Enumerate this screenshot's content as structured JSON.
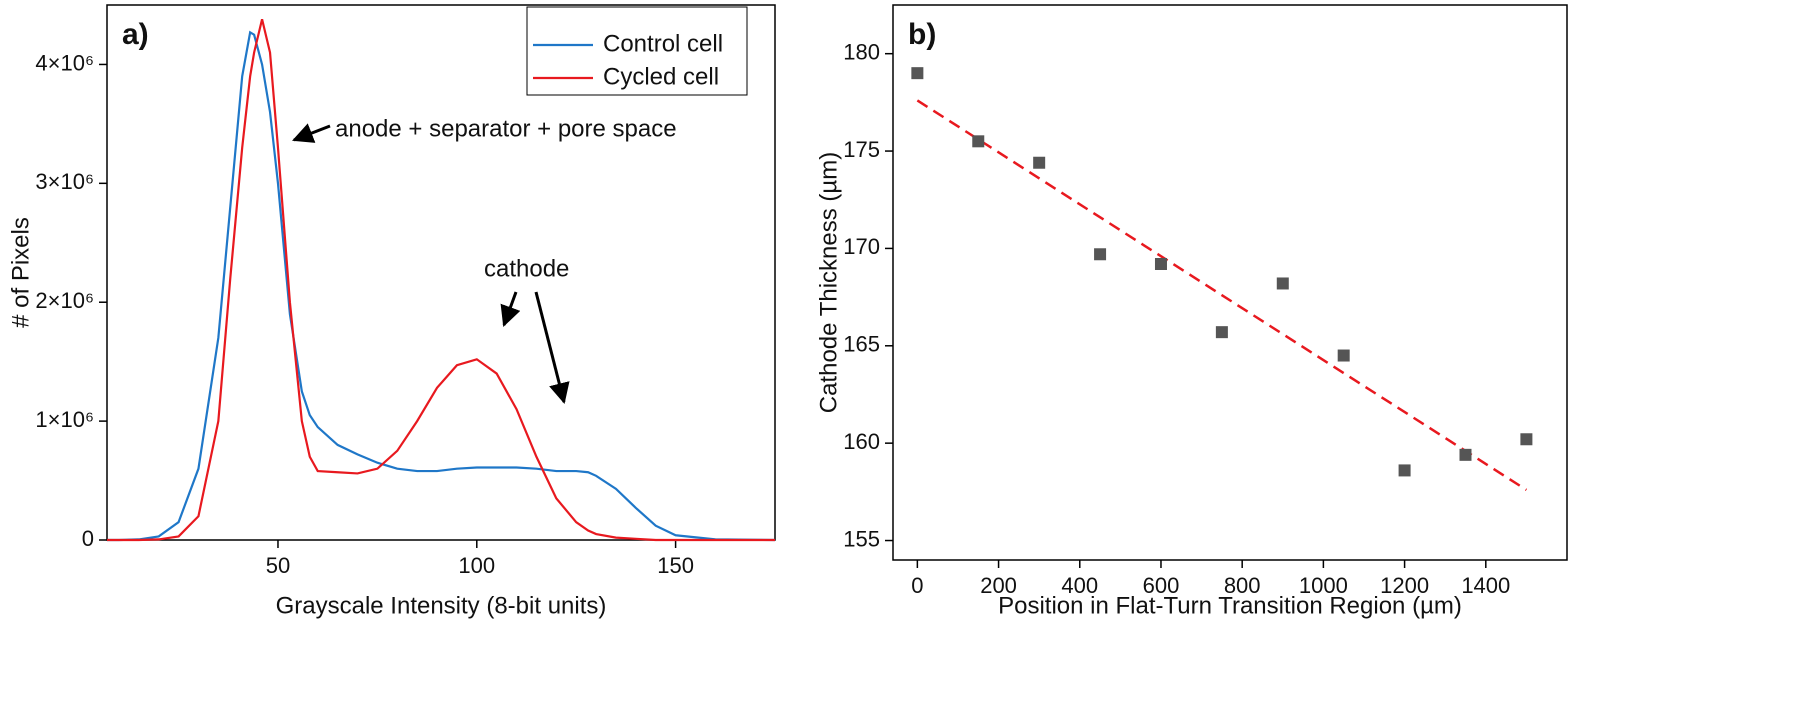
{
  "chart_data": [
    {
      "type": "line",
      "panel_label": "a)",
      "x_label": "Grayscale Intensity (8-bit units)",
      "y_label": "# of Pixels",
      "xlim": [
        7,
        175
      ],
      "ylim": [
        0,
        4500000
      ],
      "xticks": [
        50,
        100,
        150
      ],
      "yticks": [
        0,
        {
          "value": 1000000,
          "label": "1×10⁶"
        },
        {
          "value": 2000000,
          "label": "2×10⁶"
        },
        {
          "value": 3000000,
          "label": "3×10⁶"
        },
        {
          "value": 4000000,
          "label": "4×10⁶"
        }
      ],
      "x": [
        7,
        10,
        15,
        20,
        25,
        30,
        35,
        38,
        41,
        43,
        44,
        46,
        48,
        50,
        53,
        56,
        58,
        60,
        65,
        70,
        75,
        80,
        85,
        90,
        95,
        100,
        105,
        110,
        115,
        120,
        125,
        128,
        130,
        135,
        140,
        145,
        150,
        160,
        175
      ],
      "series": [
        {
          "name": "Control cell",
          "color": "#1f77c8",
          "values": [
            0,
            0,
            5000,
            30000,
            150000,
            600000,
            1700000,
            2800000,
            3900000,
            4270000,
            4250000,
            4000000,
            3600000,
            3000000,
            1900000,
            1250000,
            1050000,
            950000,
            800000,
            720000,
            650000,
            600000,
            580000,
            580000,
            600000,
            610000,
            610000,
            610000,
            600000,
            580000,
            580000,
            570000,
            540000,
            430000,
            270000,
            120000,
            40000,
            5000,
            0
          ]
        },
        {
          "name": "Cycled cell",
          "color": "#e8191f",
          "values": [
            0,
            0,
            0,
            5000,
            30000,
            200000,
            1000000,
            2200000,
            3300000,
            3900000,
            4100000,
            4380000,
            4100000,
            3300000,
            2000000,
            1000000,
            700000,
            580000,
            570000,
            560000,
            600000,
            750000,
            1000000,
            1280000,
            1470000,
            1520000,
            1400000,
            1100000,
            700000,
            350000,
            150000,
            80000,
            50000,
            20000,
            10000,
            0,
            0,
            0,
            0
          ]
        }
      ],
      "annotations": [
        "anode + separator + pore space",
        "cathode"
      ]
    },
    {
      "type": "scatter",
      "panel_label": "b)",
      "x_label": "Position in Flat-Turn Transition Region (µm)",
      "y_label": "Cathode Thickness (µm)",
      "xlim": [
        -60,
        1600
      ],
      "ylim": [
        154,
        182.5
      ],
      "xticks": [
        0,
        200,
        400,
        600,
        800,
        1000,
        1200,
        1400
      ],
      "yticks": [
        155,
        160,
        165,
        170,
        175,
        180
      ],
      "x": [
        0,
        150,
        300,
        450,
        600,
        750,
        900,
        1050,
        1200,
        1350,
        1500
      ],
      "series": [
        {
          "color": "#555555",
          "values": [
            179,
            175.5,
            174.4,
            169.7,
            169.2,
            165.7,
            168.2,
            164.5,
            158.6,
            159.4,
            160.2
          ]
        }
      ],
      "fit": {
        "color": "#e8191f",
        "x": [
          0,
          1500
        ],
        "values": [
          177.6,
          157.6
        ]
      }
    }
  ]
}
